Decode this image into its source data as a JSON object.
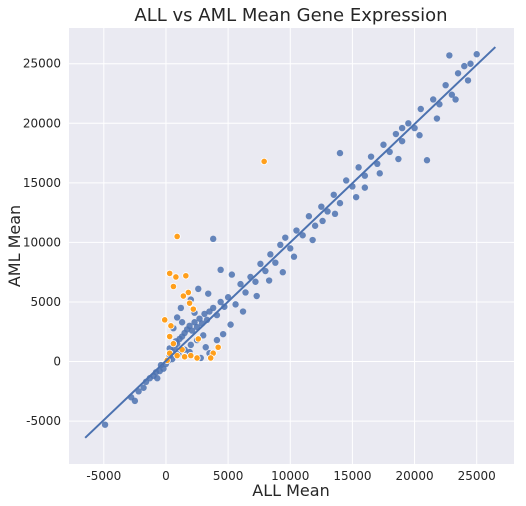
{
  "chart_data": {
    "type": "scatter",
    "title": "ALL vs AML Mean Gene Expression",
    "xlabel": "ALL Mean",
    "ylabel": "AML Mean",
    "xlim": [
      -7800,
      28000
    ],
    "ylim": [
      -8600,
      28000
    ],
    "xticks": [
      -5000,
      0,
      5000,
      10000,
      15000,
      20000,
      25000
    ],
    "yticks": [
      -5000,
      0,
      5000,
      10000,
      15000,
      20000,
      25000
    ],
    "grid": true,
    "background": "#eaeaf2",
    "colors": {
      "points": "#4c72b0",
      "highlight": "#ff9f1c",
      "fit_line": "#4c72b0"
    },
    "fit_line": {
      "x": [
        -6500,
        26500
      ],
      "y": [
        -6400,
        26400
      ]
    },
    "series": [
      {
        "values": [
          [
            -4900,
            -5300
          ],
          [
            -2800,
            -3000
          ],
          [
            -2500,
            -3300
          ],
          [
            -2200,
            -2500
          ],
          [
            -1800,
            -2200
          ],
          [
            -1600,
            -1700
          ],
          [
            -1300,
            -1400
          ],
          [
            -1000,
            -1200
          ],
          [
            -800,
            -900
          ],
          [
            -700,
            -1400
          ],
          [
            -500,
            -800
          ],
          [
            -400,
            -300
          ],
          [
            -200,
            -600
          ],
          [
            0,
            -200
          ],
          [
            200,
            100
          ],
          [
            300,
            500
          ],
          [
            500,
            800
          ],
          [
            700,
            1200
          ],
          [
            900,
            1500
          ],
          [
            1100,
            1900
          ],
          [
            1300,
            2100
          ],
          [
            1500,
            2400
          ],
          [
            1700,
            2700
          ],
          [
            1900,
            3000
          ],
          [
            2100,
            2600
          ],
          [
            2300,
            3300
          ],
          [
            2500,
            2900
          ],
          [
            2700,
            3600
          ],
          [
            2900,
            3200
          ],
          [
            3100,
            4000
          ],
          [
            3300,
            3500
          ],
          [
            3500,
            4200
          ],
          [
            3800,
            4500
          ],
          [
            4100,
            3900
          ],
          [
            4400,
            5000
          ],
          [
            4700,
            4600
          ],
          [
            5000,
            5400
          ],
          [
            5300,
            7300
          ],
          [
            5600,
            4800
          ],
          [
            6000,
            6500
          ],
          [
            6400,
            5800
          ],
          [
            6800,
            7100
          ],
          [
            7200,
            6700
          ],
          [
            7600,
            8200
          ],
          [
            8000,
            7600
          ],
          [
            8400,
            9000
          ],
          [
            8800,
            8300
          ],
          [
            9200,
            9800
          ],
          [
            9600,
            10400
          ],
          [
            10000,
            9500
          ],
          [
            10500,
            11000
          ],
          [
            11000,
            10600
          ],
          [
            11500,
            12200
          ],
          [
            12000,
            11400
          ],
          [
            12500,
            13000
          ],
          [
            13000,
            12600
          ],
          [
            13500,
            14000
          ],
          [
            14000,
            13300
          ],
          [
            14500,
            15200
          ],
          [
            15000,
            14700
          ],
          [
            15500,
            16300
          ],
          [
            16000,
            15600
          ],
          [
            16500,
            17200
          ],
          [
            17000,
            16600
          ],
          [
            17500,
            18200
          ],
          [
            18000,
            17600
          ],
          [
            18500,
            19100
          ],
          [
            19000,
            18500
          ],
          [
            19500,
            20000
          ],
          [
            20000,
            19600
          ],
          [
            20500,
            21200
          ],
          [
            21000,
            16900
          ],
          [
            21500,
            22000
          ],
          [
            22000,
            21600
          ],
          [
            22500,
            23200
          ],
          [
            23000,
            22400
          ],
          [
            23500,
            24200
          ],
          [
            24000,
            24800
          ],
          [
            24500,
            25000
          ],
          [
            25000,
            25800
          ],
          [
            22800,
            25700
          ],
          [
            19000,
            19600
          ],
          [
            16000,
            14600
          ],
          [
            14000,
            17500
          ],
          [
            3800,
            10300
          ],
          [
            4400,
            7700
          ],
          [
            1200,
            4500
          ],
          [
            2000,
            5200
          ],
          [
            2600,
            6100
          ],
          [
            900,
            3700
          ],
          [
            3200,
            1200
          ],
          [
            3500,
            700
          ],
          [
            2800,
            300
          ],
          [
            1900,
            800
          ],
          [
            4100,
            1800
          ],
          [
            4600,
            2300
          ],
          [
            5200,
            3100
          ],
          [
            6200,
            4200
          ],
          [
            7300,
            5500
          ],
          [
            8300,
            6800
          ],
          [
            9400,
            7500
          ],
          [
            10300,
            8800
          ],
          [
            11800,
            10200
          ],
          [
            12600,
            11800
          ],
          [
            13600,
            12400
          ],
          [
            15300,
            13800
          ],
          [
            17200,
            15800
          ],
          [
            18700,
            17000
          ],
          [
            20400,
            19000
          ],
          [
            21800,
            20400
          ],
          [
            23300,
            22000
          ],
          [
            24300,
            23600
          ],
          [
            500,
            200
          ],
          [
            1000,
            600
          ],
          [
            1500,
            1000
          ],
          [
            2000,
            1400
          ],
          [
            2500,
            1800
          ],
          [
            3000,
            2200
          ],
          [
            600,
            2800
          ],
          [
            1300,
            3300
          ],
          [
            2300,
            4100
          ],
          [
            3400,
            5700
          ],
          [
            300,
            1100
          ],
          [
            800,
            1700
          ]
        ]
      },
      {
        "values": [
          [
            7900,
            16800
          ],
          [
            900,
            10500
          ],
          [
            300,
            7400
          ],
          [
            800,
            7100
          ],
          [
            1600,
            7200
          ],
          [
            600,
            6300
          ],
          [
            1800,
            5800
          ],
          [
            1400,
            5500
          ],
          [
            1900,
            4900
          ],
          [
            2200,
            4400
          ],
          [
            -100,
            3500
          ],
          [
            400,
            3000
          ],
          [
            300,
            2100
          ],
          [
            600,
            1500
          ],
          [
            2600,
            1900
          ],
          [
            1300,
            1000
          ],
          [
            300,
            700
          ],
          [
            900,
            500
          ],
          [
            1500,
            400
          ],
          [
            2000,
            500
          ],
          [
            2500,
            300
          ],
          [
            3800,
            700
          ],
          [
            4200,
            1200
          ],
          [
            3600,
            300
          ],
          [
            100,
            100
          ]
        ]
      }
    ]
  }
}
